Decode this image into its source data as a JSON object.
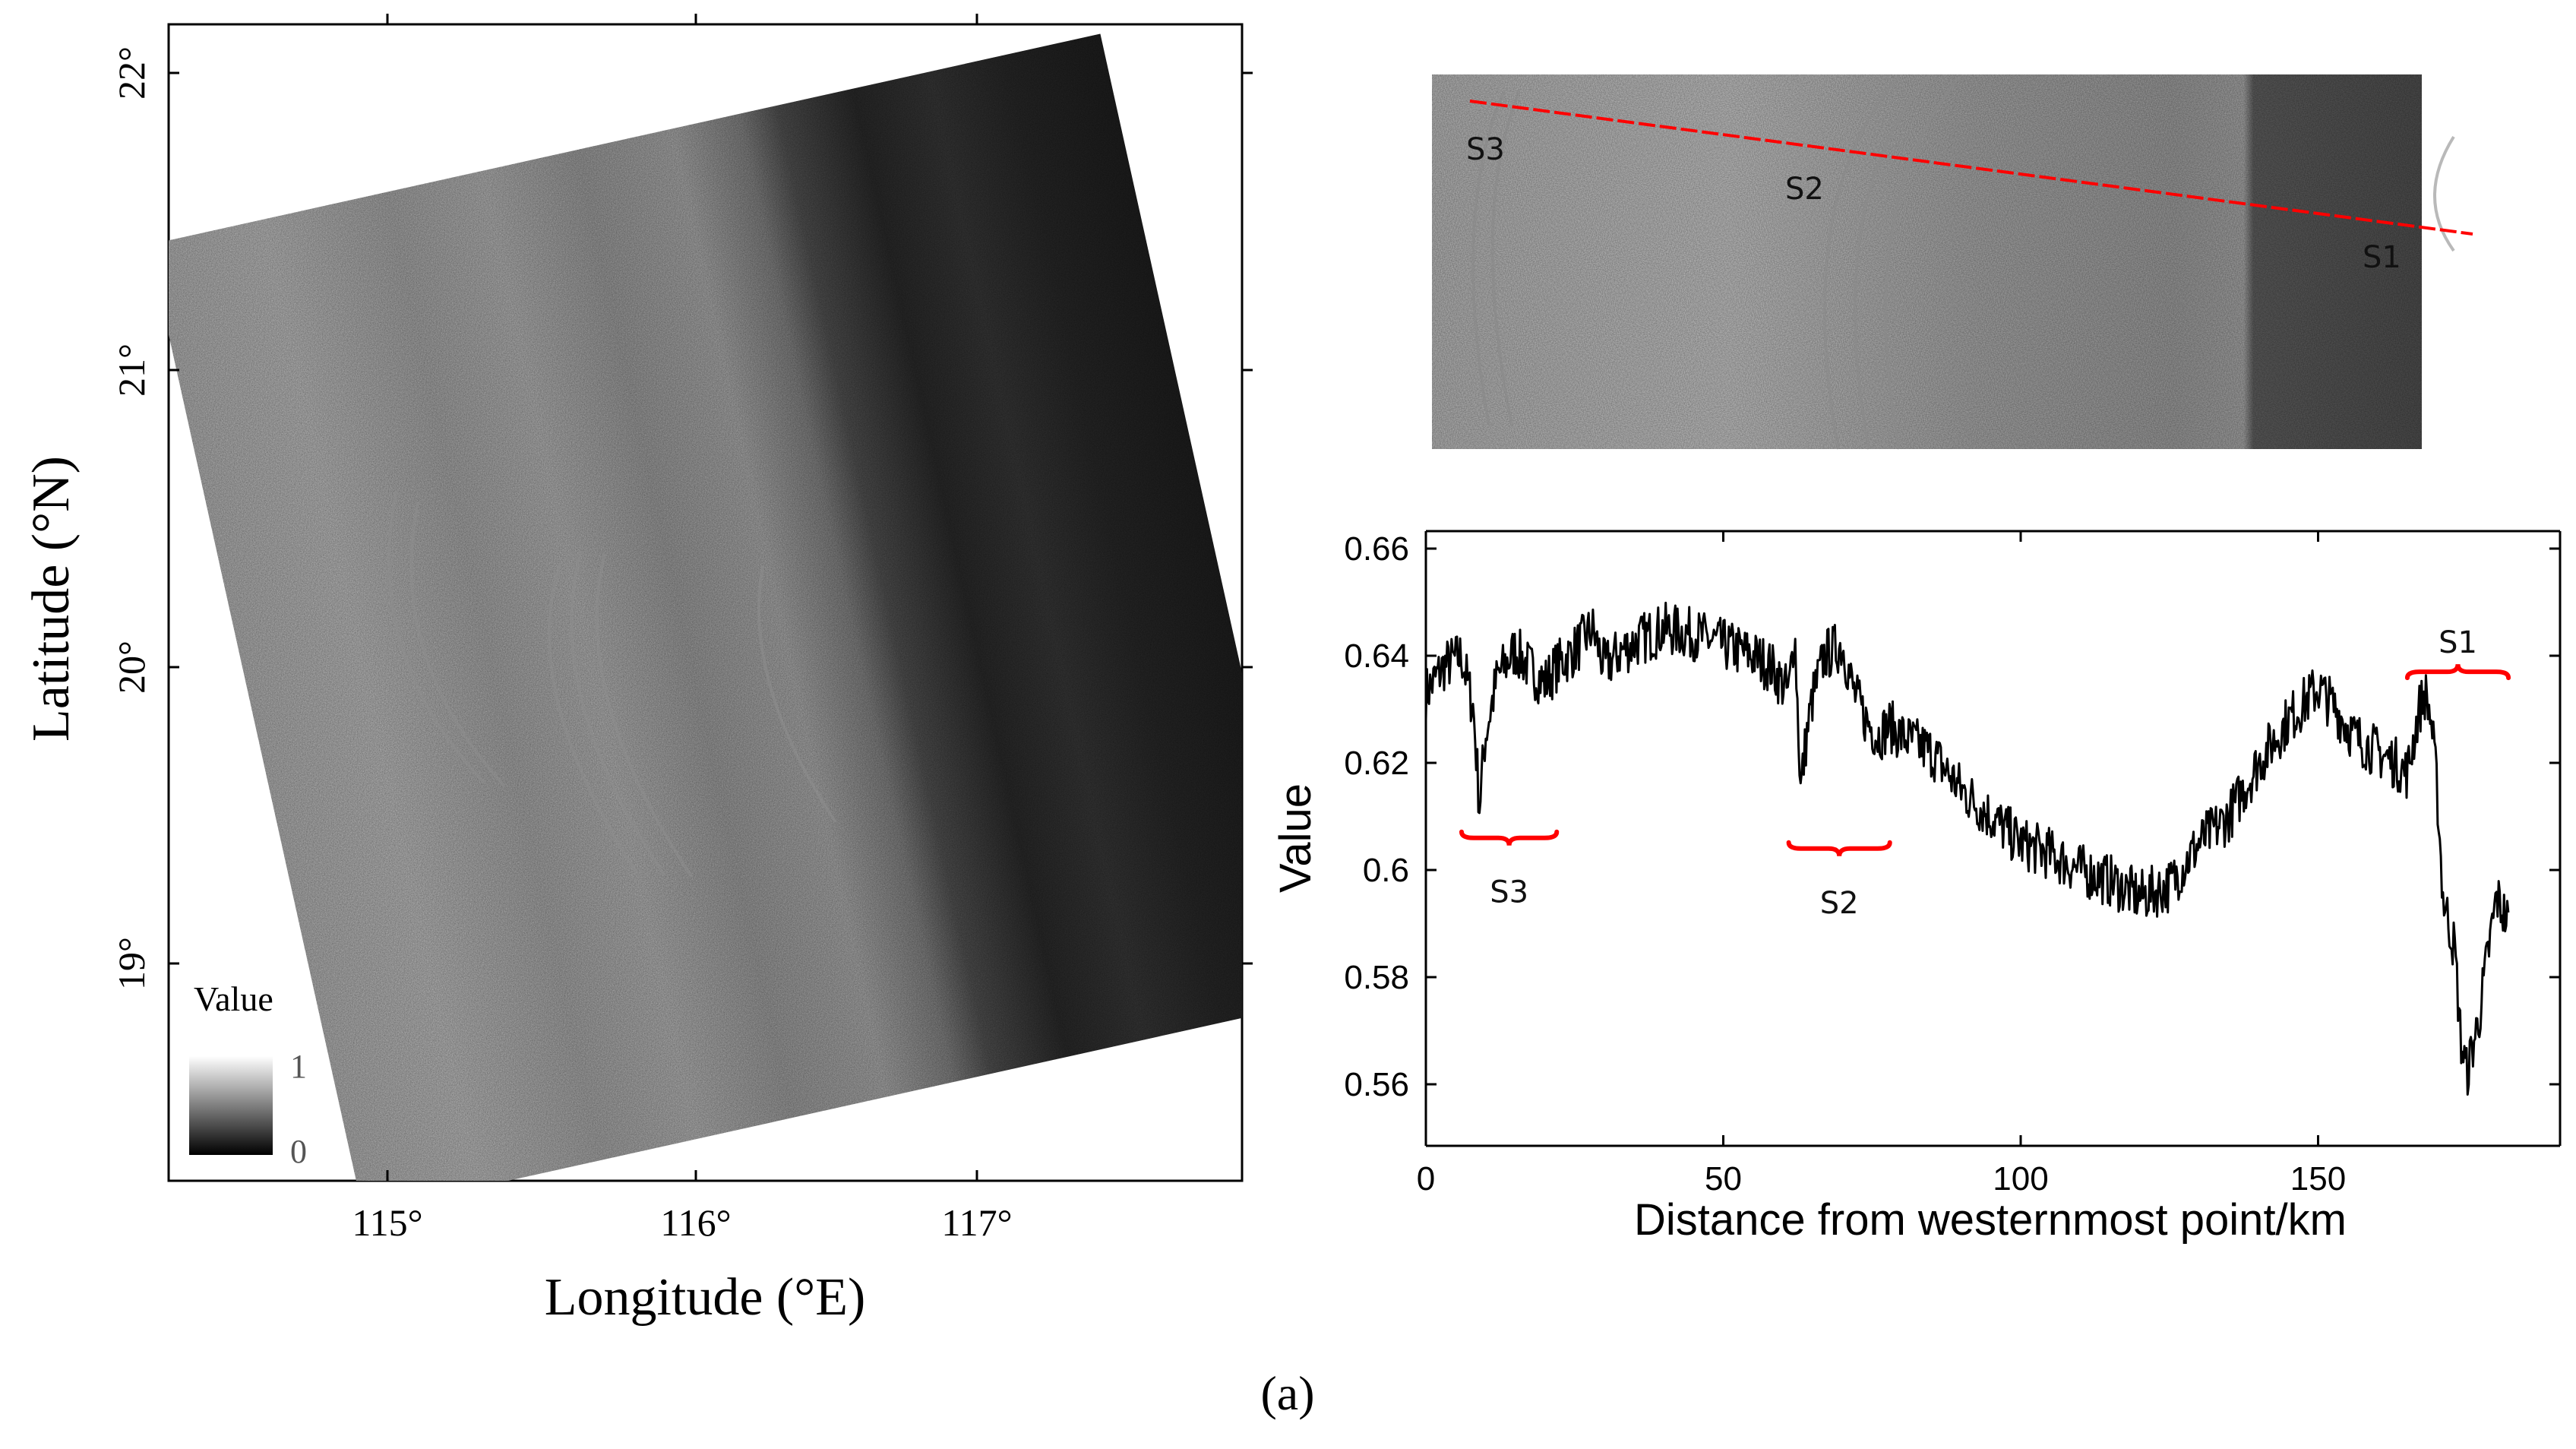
{
  "panel_label": "(a)",
  "map": {
    "xlabel": "Longitude (°E)",
    "ylabel": "Latitude (°N)",
    "x_ticks": [
      "115°",
      "116°",
      "117°"
    ],
    "y_ticks": [
      "19°",
      "20°",
      "21°",
      "22°"
    ],
    "colorbar": {
      "title": "Value",
      "max_label": "1",
      "min_label": "0"
    }
  },
  "inset": {
    "markers": [
      "S3",
      "S2",
      "S1"
    ],
    "transect_color": "#ff0000"
  },
  "chart_data": {
    "type": "line",
    "title": "",
    "xlabel": "Distance from westernmost point/km",
    "ylabel": "Value",
    "xlim": [
      0,
      190
    ],
    "ylim": [
      0.55,
      0.66
    ],
    "x_ticks": [
      "0",
      "50",
      "100",
      "150"
    ],
    "y_ticks": [
      "0.56",
      "0.58",
      "0.6",
      "0.62",
      "0.64",
      "0.66"
    ],
    "grid": false,
    "series": [
      {
        "x": [
          0,
          3,
          6,
          8,
          9,
          10,
          12,
          15,
          18,
          20,
          22,
          25,
          28,
          30,
          33,
          36,
          40,
          45,
          50,
          55,
          58,
          61,
          62,
          63,
          64,
          65,
          67,
          70,
          72,
          74,
          76,
          78,
          80,
          85,
          90,
          95,
          100,
          105,
          110,
          115,
          120,
          125,
          130,
          135,
          140,
          145,
          150,
          153,
          156,
          160,
          163,
          165,
          167,
          168,
          169,
          170,
          171,
          172,
          173,
          174,
          175,
          176,
          177,
          178,
          180,
          182
        ],
        "y": [
          0.633,
          0.638,
          0.64,
          0.63,
          0.612,
          0.625,
          0.636,
          0.641,
          0.637,
          0.635,
          0.638,
          0.641,
          0.645,
          0.638,
          0.641,
          0.643,
          0.645,
          0.644,
          0.642,
          0.64,
          0.638,
          0.633,
          0.645,
          0.615,
          0.625,
          0.632,
          0.64,
          0.642,
          0.633,
          0.628,
          0.625,
          0.627,
          0.625,
          0.622,
          0.615,
          0.61,
          0.605,
          0.603,
          0.6,
          0.598,
          0.595,
          0.597,
          0.605,
          0.61,
          0.62,
          0.628,
          0.634,
          0.63,
          0.625,
          0.622,
          0.62,
          0.618,
          0.63,
          0.633,
          0.628,
          0.615,
          0.595,
          0.59,
          0.585,
          0.568,
          0.562,
          0.567,
          0.572,
          0.58,
          0.595,
          0.59
        ],
        "color": "#000000"
      }
    ],
    "annotations": [
      {
        "label": "S3",
        "x_range": [
          6,
          22
        ],
        "y": 0.606,
        "position": "below"
      },
      {
        "label": "S2",
        "x_range": [
          61,
          78
        ],
        "y": 0.604,
        "position": "below"
      },
      {
        "label": "S1",
        "x_range": [
          165,
          182
        ],
        "y": 0.637,
        "position": "above"
      }
    ],
    "annotation_color": "#ff0000"
  }
}
